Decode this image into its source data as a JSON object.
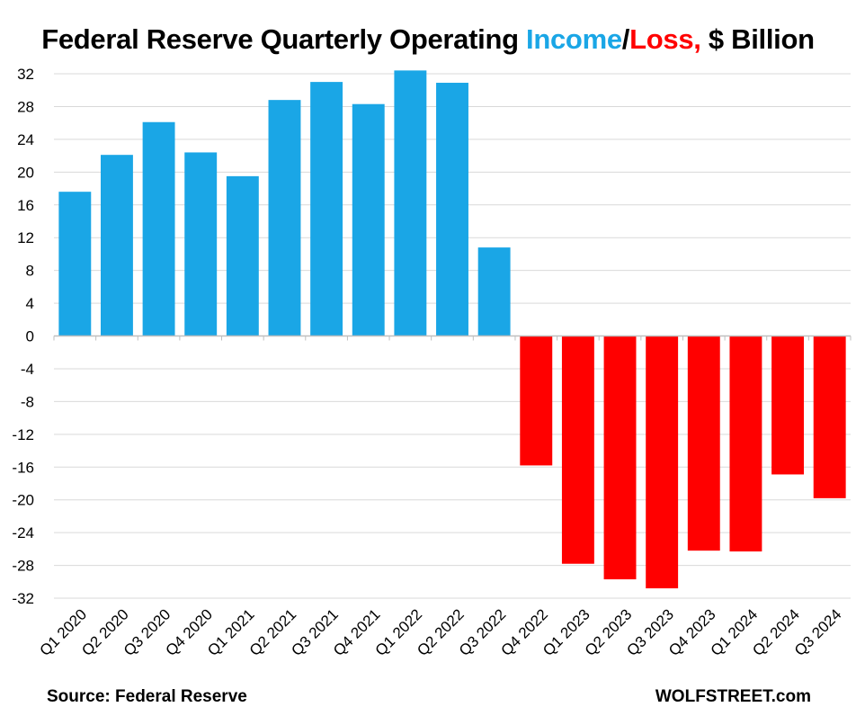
{
  "title": {
    "prefix": "Federal Reserve Quarterly Operating ",
    "income": "Income",
    "slash": "/",
    "loss": "Loss,",
    "suffix": " $ Billion"
  },
  "footer": {
    "source": "Source: Federal Reserve",
    "brand": "WOLFSTREET.com"
  },
  "colors": {
    "income": "#1aa6e6",
    "loss": "#ff0000",
    "grid": "#d9d9d9",
    "axis": "#bfbfbf"
  },
  "chart_data": {
    "type": "bar",
    "title": "Federal Reserve Quarterly Operating Income/Loss, $ Billion",
    "xlabel": "",
    "ylabel": "",
    "ylim": [
      -32,
      32
    ],
    "yticks": [
      32,
      28,
      24,
      20,
      16,
      12,
      8,
      4,
      0,
      -4,
      -8,
      -12,
      -16,
      -20,
      -24,
      -28,
      -32
    ],
    "grid": true,
    "legend": "none",
    "categories": [
      "Q1 2020",
      "Q2 2020",
      "Q3 2020",
      "Q4 2020",
      "Q1 2021",
      "Q2 2021",
      "Q3 2021",
      "Q4 2021",
      "Q1 2022",
      "Q2 2022",
      "Q3 2022",
      "Q4 2022",
      "Q1 2023",
      "Q2 2023",
      "Q3 2023",
      "Q4 2023",
      "Q1 2024",
      "Q2 2024",
      "Q3 2024"
    ],
    "values": [
      17.6,
      22.1,
      26.1,
      22.4,
      19.5,
      28.8,
      31.0,
      28.3,
      32.4,
      30.9,
      10.8,
      -15.8,
      -27.8,
      -29.7,
      -30.8,
      -26.2,
      -26.3,
      -16.9,
      -19.8
    ]
  }
}
